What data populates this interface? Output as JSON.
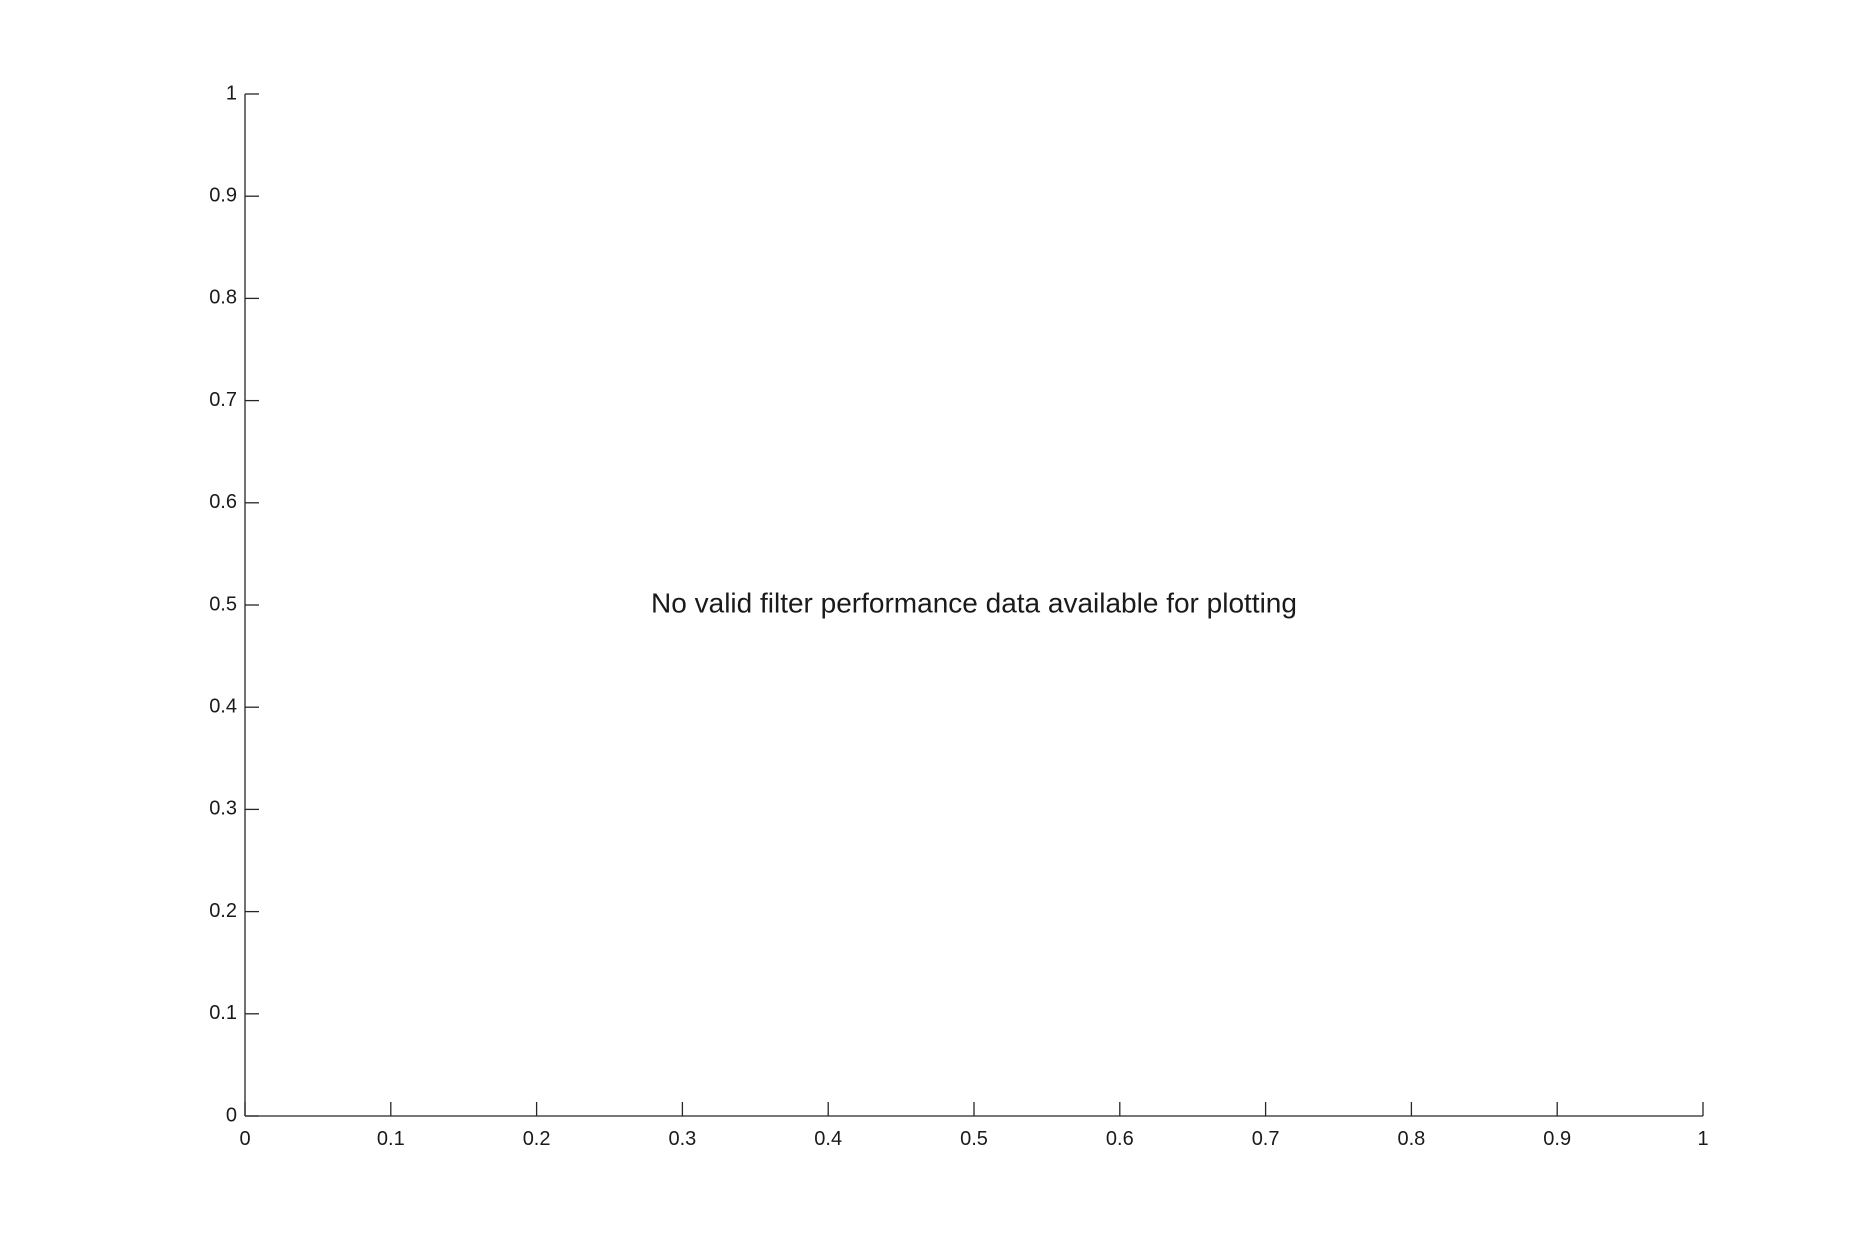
{
  "chart_data": {
    "type": "line",
    "title": "",
    "xlabel": "",
    "ylabel": "",
    "xlim": [
      0,
      1
    ],
    "ylim": [
      0,
      1
    ],
    "x_ticks": [
      "0",
      "0.1",
      "0.2",
      "0.3",
      "0.4",
      "0.5",
      "0.6",
      "0.7",
      "0.8",
      "0.9",
      "1"
    ],
    "y_ticks": [
      "0",
      "0.1",
      "0.2",
      "0.3",
      "0.4",
      "0.5",
      "0.6",
      "0.7",
      "0.8",
      "0.9",
      "1"
    ],
    "series": [],
    "grid": false,
    "annotation": {
      "text": "No valid filter performance data available for plotting",
      "x": 0.5,
      "y": 0.5
    },
    "colors": {
      "axis": "#262626",
      "text": "#1a1a1a",
      "background": "#ffffff"
    }
  }
}
